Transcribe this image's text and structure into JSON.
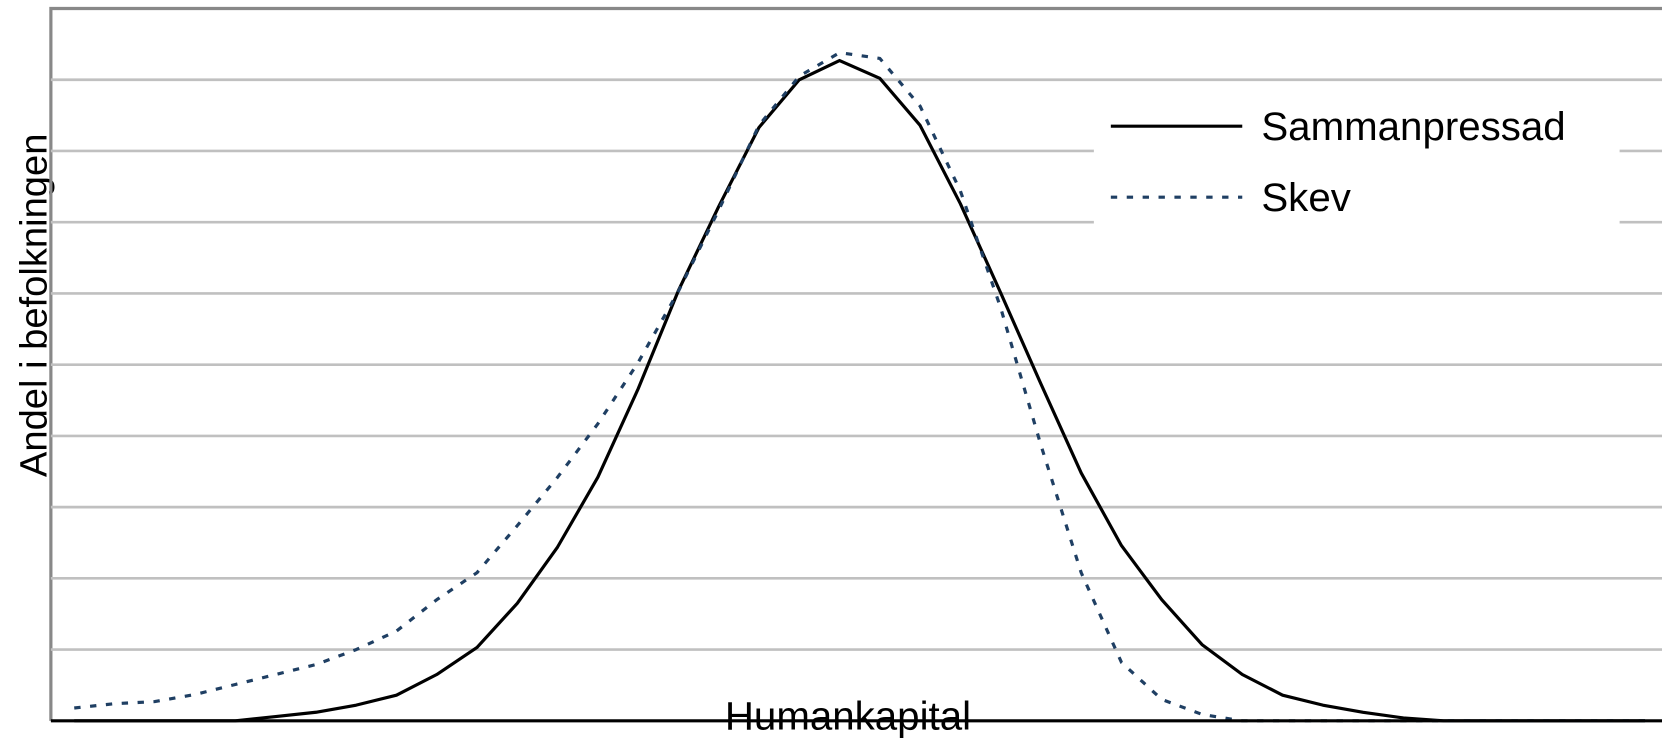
{
  "chart_data": {
    "type": "line",
    "x_label": "Humankapital",
    "y_label": "Andel i befolkningen",
    "x": [
      0,
      1,
      2,
      3,
      4,
      5,
      6,
      7,
      8,
      9,
      10,
      11,
      12,
      13,
      14,
      15,
      16,
      17,
      18,
      19,
      20,
      21,
      22,
      23,
      24,
      25,
      26,
      27,
      28,
      29,
      30,
      31,
      32,
      33,
      34,
      35,
      36,
      37,
      38,
      39
    ],
    "series": [
      {
        "name": "Sammanpressad",
        "color": "#000000",
        "dash": "solid",
        "values": [
          0,
          0,
          0,
          0,
          0,
          0.06,
          0.12,
          0.22,
          0.36,
          0.65,
          1.03,
          1.65,
          2.44,
          3.42,
          4.66,
          6.04,
          7.22,
          8.33,
          9.0,
          9.27,
          9.02,
          8.36,
          7.26,
          6.01,
          4.73,
          3.48,
          2.46,
          1.7,
          1.07,
          0.65,
          0.36,
          0.22,
          0.12,
          0.04,
          0,
          0,
          0,
          0,
          0,
          0
        ]
      },
      {
        "name": "Skev",
        "color": "#1f3f63",
        "dash": "dotted",
        "values": [
          0.18,
          0.24,
          0.27,
          0.37,
          0.51,
          0.65,
          0.79,
          1.0,
          1.26,
          1.7,
          2.08,
          2.74,
          3.42,
          4.17,
          5.03,
          6.03,
          7.17,
          8.36,
          9.05,
          9.38,
          9.3,
          8.63,
          7.44,
          5.8,
          3.87,
          2.08,
          0.82,
          0.3,
          0.09,
          0,
          0,
          0,
          0,
          0,
          0,
          0,
          0,
          0,
          0,
          0
        ]
      }
    ],
    "xlim": [
      -0.58,
      39.42
    ],
    "ylim": [
      0,
      10
    ],
    "yticks": [
      1,
      2,
      3,
      4,
      5,
      6,
      7,
      8,
      9
    ],
    "grid": true,
    "legend": "upper right"
  }
}
